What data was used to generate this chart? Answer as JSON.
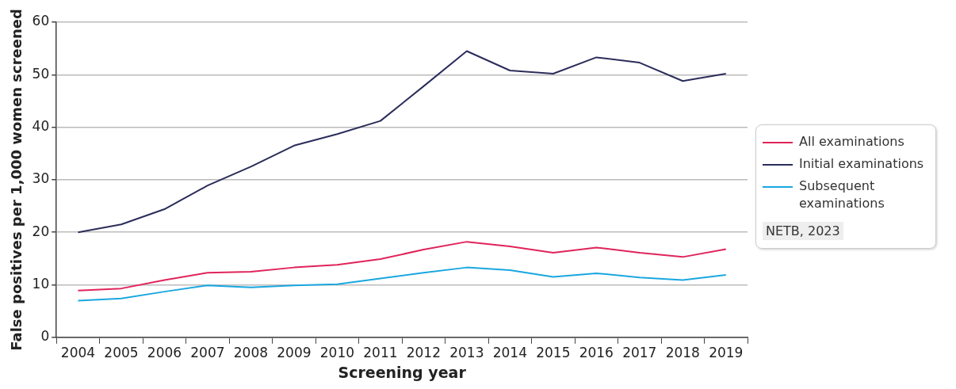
{
  "chart_data": {
    "type": "line",
    "categories": [
      "2004",
      "2005",
      "2006",
      "2007",
      "2008",
      "2009",
      "2010",
      "2011",
      "2012",
      "2013",
      "2014",
      "2015",
      "2016",
      "2017",
      "2018",
      "2019"
    ],
    "series": [
      {
        "name": "All examinations",
        "color": "#e0245a",
        "values": [
          8.9,
          9.3,
          10.9,
          12.3,
          12.5,
          13.3,
          13.8,
          14.9,
          16.7,
          18.2,
          17.3,
          16.1,
          17.1,
          16.1,
          15.3,
          16.8
        ]
      },
      {
        "name": "Initial examinations",
        "color": "#2b2d5a",
        "values": [
          20,
          21.5,
          24.4,
          28.9,
          32.5,
          36.5,
          38.7,
          41.2,
          47.8,
          54.5,
          50.8,
          50.2,
          53.3,
          52.3,
          48.8,
          50.2
        ]
      },
      {
        "name": "Subsequent examinations",
        "color": "#1aa7e0",
        "values": [
          7.0,
          7.4,
          8.7,
          9.9,
          9.5,
          9.9,
          10.1,
          11.2,
          12.3,
          13.3,
          12.8,
          11.5,
          12.2,
          11.4,
          10.9,
          11.9
        ]
      }
    ],
    "xlabel": "Screening year",
    "ylabel": "False positives per 1,000 women screened",
    "ylim": [
      0,
      60
    ],
    "yticks": [
      0,
      10,
      20,
      30,
      40,
      50,
      60
    ],
    "grid": "y",
    "legend": "right",
    "annotations": [
      "NETB, 2023"
    ]
  }
}
